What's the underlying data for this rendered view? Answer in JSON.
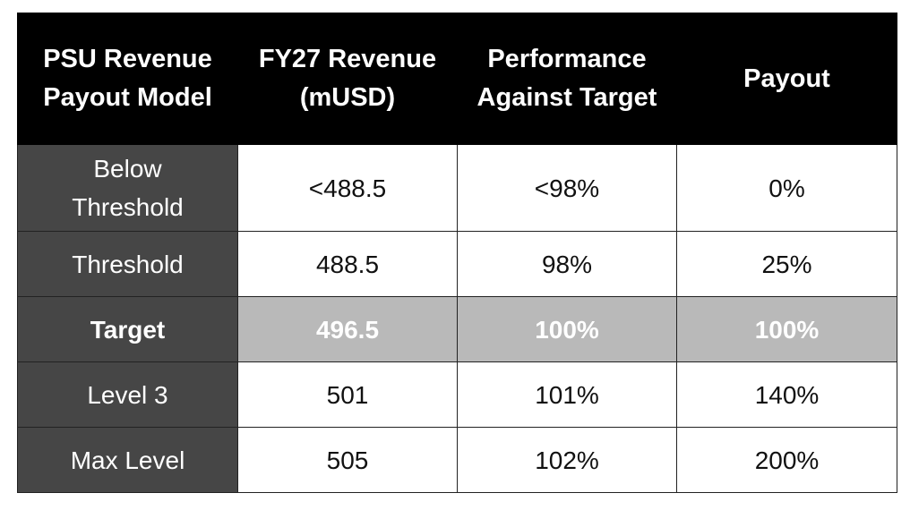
{
  "table": {
    "headers": [
      "PSU Revenue Payout Model",
      "FY27 Revenue (mUSD)",
      "Performance Against Target",
      "Payout"
    ],
    "headers_lines": [
      [
        "PSU Revenue",
        "Payout Model"
      ],
      [
        "FY27 Revenue",
        "(mUSD)"
      ],
      [
        "Performance",
        "Against Target"
      ],
      [
        "Payout"
      ]
    ],
    "rows": [
      {
        "label_lines": [
          "Below",
          "Threshold"
        ],
        "revenue": "<488.5",
        "performance": "<98%",
        "payout": "0%"
      },
      {
        "label_lines": [
          "Threshold"
        ],
        "revenue": "488.5",
        "performance": "98%",
        "payout": "25%"
      },
      {
        "label_lines": [
          "Target"
        ],
        "revenue": "496.5",
        "performance": "100%",
        "payout": "100%"
      },
      {
        "label_lines": [
          "Level 3"
        ],
        "revenue": "501",
        "performance": "101%",
        "payout": "140%"
      },
      {
        "label_lines": [
          "Max Level"
        ],
        "revenue": "505",
        "performance": "102%",
        "payout": "200%"
      }
    ]
  },
  "colors": {
    "header_bg": "#000000",
    "label_bg": "#464646",
    "highlight_bg": "#b9b9b9",
    "cell_bg": "#ffffff"
  }
}
